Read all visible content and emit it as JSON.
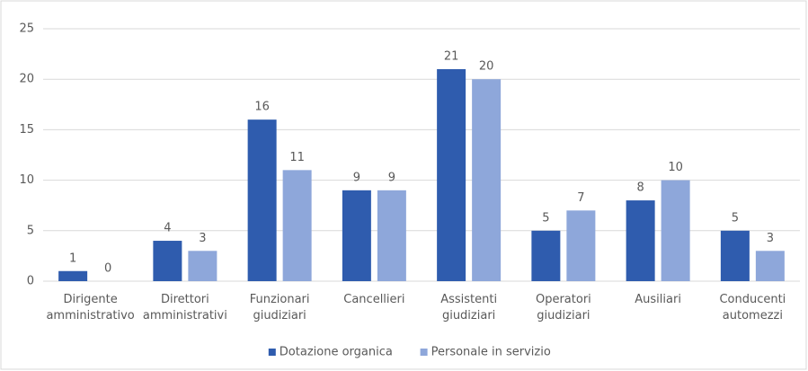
{
  "chart_data": {
    "type": "bar",
    "categories": [
      "Dirigente amministrativo",
      "Direttori amministrativi",
      "Funzionari giudiziari",
      "Cancellieri",
      "Assistenti giudiziari",
      "Operatori giudiziari",
      "Ausiliari",
      "Conducenti automezzi"
    ],
    "series": [
      {
        "name": "Dotazione organica",
        "color": "#2f5cae",
        "values": [
          1,
          4,
          16,
          9,
          21,
          5,
          8,
          5
        ]
      },
      {
        "name": "Personale in servizio",
        "color": "#8ea7da",
        "values": [
          0,
          3,
          11,
          9,
          20,
          7,
          10,
          3
        ]
      }
    ],
    "ylim": [
      0,
      25
    ],
    "yticks": [
      0,
      5,
      10,
      15,
      20,
      25
    ],
    "grid": true,
    "legend": "bottom"
  }
}
